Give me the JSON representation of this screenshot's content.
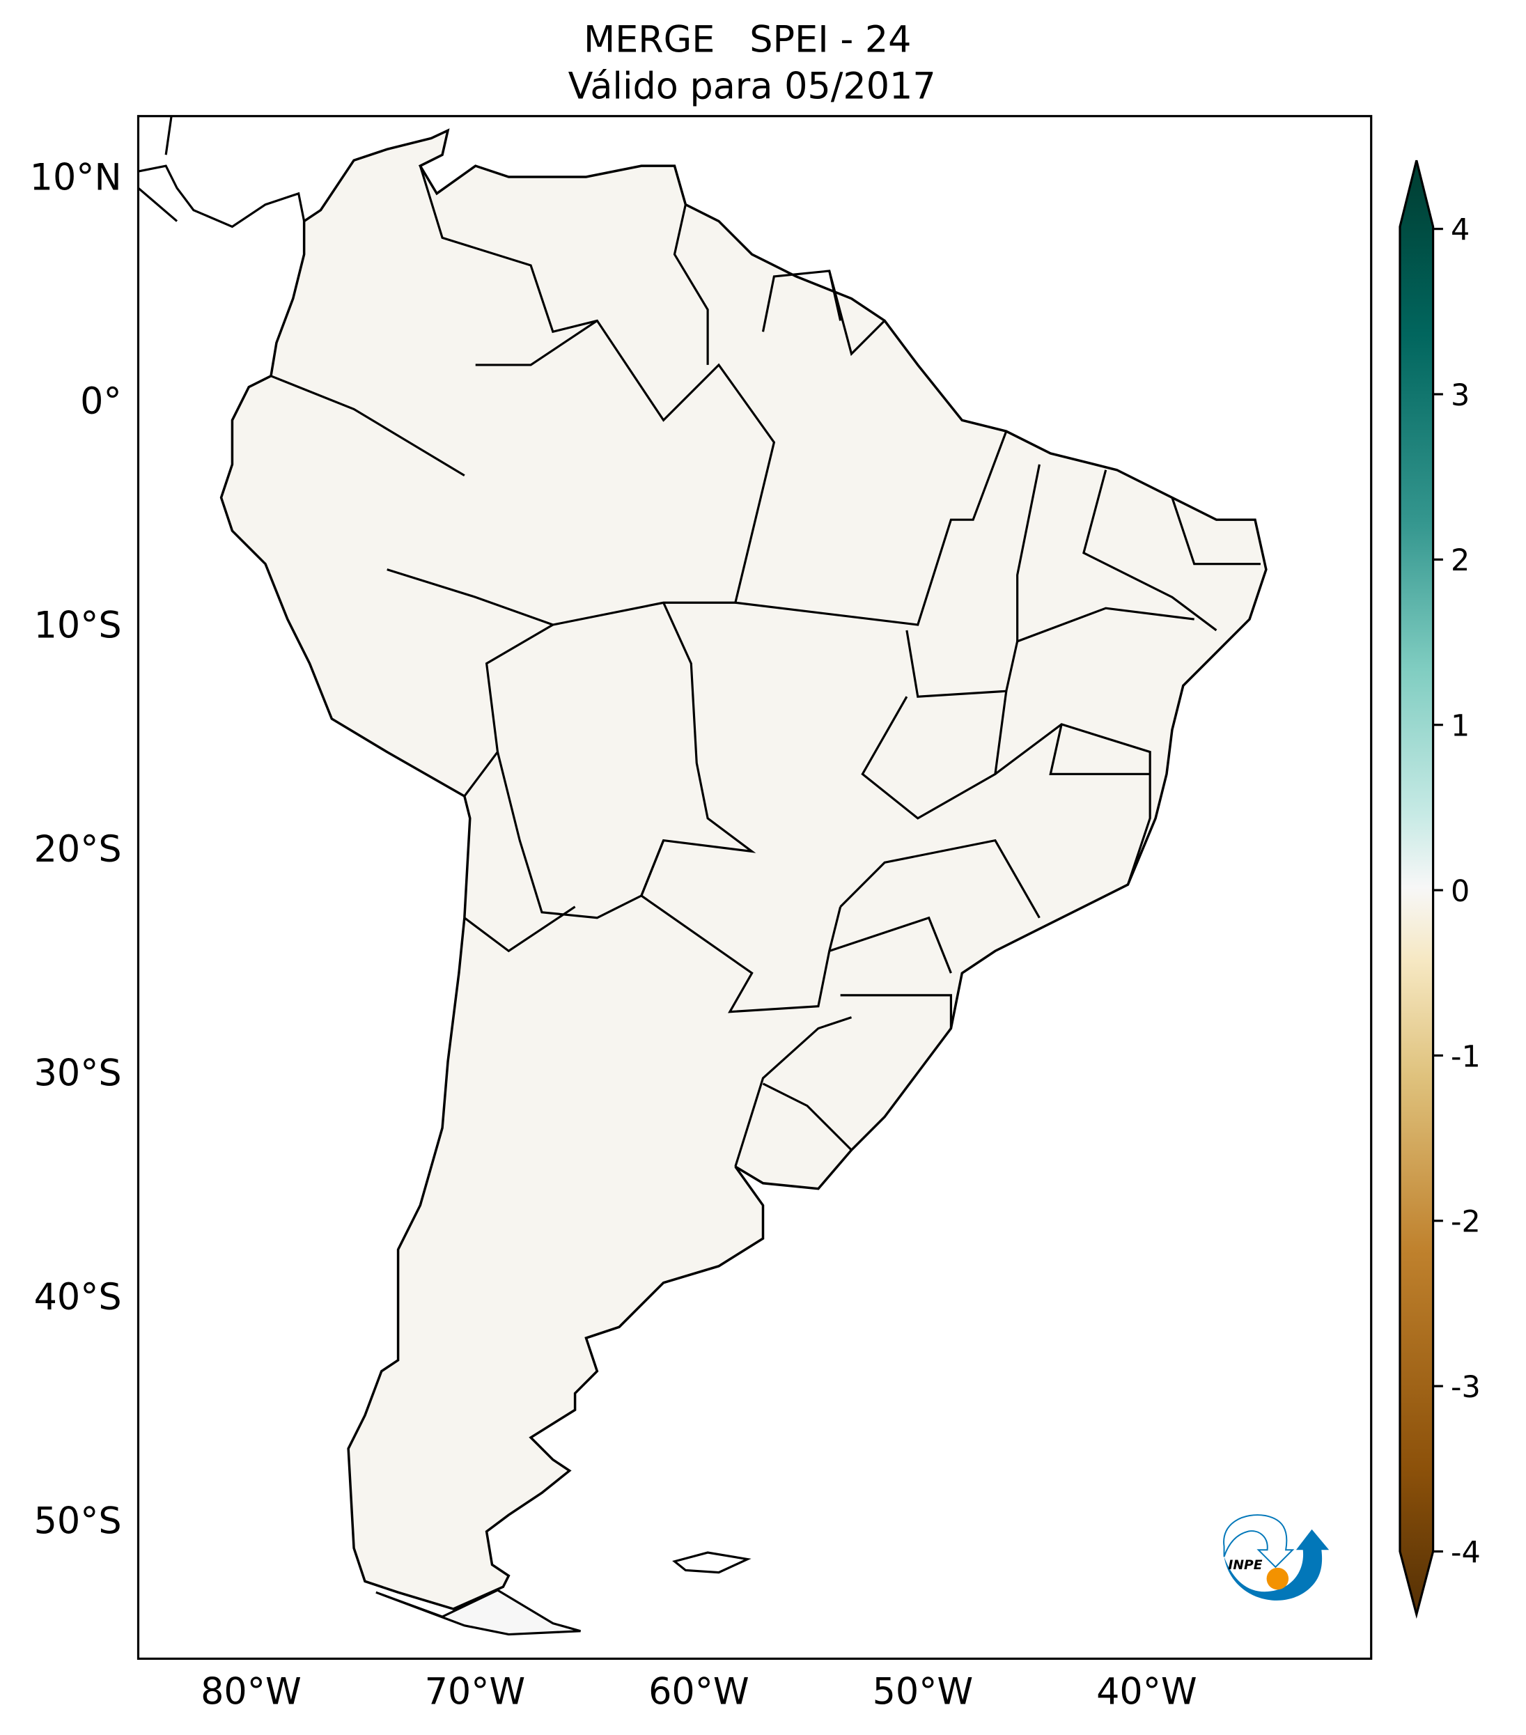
{
  "title": {
    "line1": "MERGE   SPEI - 24",
    "line2": "Válido para 05/2017"
  },
  "axes": {
    "lat_labels": [
      "10°N",
      "0°",
      "10°S",
      "20°S",
      "30°S",
      "40°S",
      "50°S"
    ],
    "lat_values": [
      10,
      0,
      -10,
      -20,
      -30,
      -40,
      -50
    ],
    "lon_labels": [
      "80°W",
      "70°W",
      "60°W",
      "50°W",
      "40°W"
    ],
    "lon_values": [
      -80,
      -70,
      -60,
      -50,
      -40
    ],
    "lon_range": [
      -85,
      -30
    ],
    "lat_range": [
      -56,
      12.7
    ]
  },
  "colorbar": {
    "ticks": [
      "4",
      "3",
      "2",
      "1",
      "0",
      "-1",
      "-2",
      "-3",
      "-4"
    ],
    "tick_values": [
      4,
      3,
      2,
      1,
      0,
      -1,
      -2,
      -3,
      -4
    ],
    "range": [
      -4,
      4
    ],
    "extend": "both",
    "colormap": "BrBG",
    "colors": [
      "#543005",
      "#8c510a",
      "#bf812d",
      "#dfc27d",
      "#f6e8c3",
      "#f5f5f5",
      "#c7eae5",
      "#80cdc1",
      "#35978f",
      "#01665e",
      "#003c30"
    ]
  },
  "logo": {
    "text": "INPE",
    "blue": "#0277b9",
    "orange": "#f39200"
  }
}
